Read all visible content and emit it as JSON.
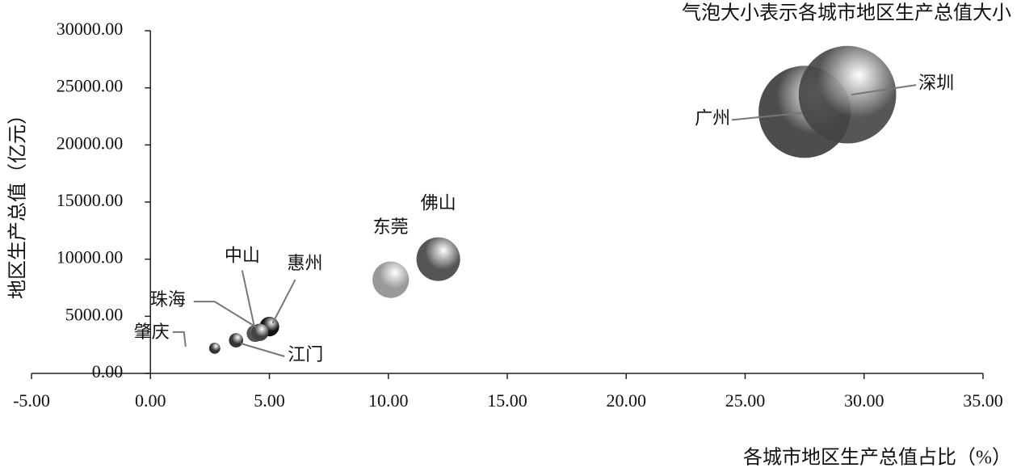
{
  "chart_data": {
    "type": "bubble",
    "annotation": "气泡大小表示各城市地区生产总值大小",
    "x_label": "各城市地区生产总值占比（%）",
    "y_label": "地区生产总值（亿元）",
    "categories": [
      "广州",
      "深圳",
      "佛山",
      "东莞",
      "惠州",
      "中山",
      "珠海",
      "江门",
      "肇庆"
    ],
    "x": [
      27.5,
      29.3,
      12.1,
      10.1,
      5.0,
      4.4,
      4.6,
      3.6,
      2.7
    ],
    "values": [
      22900,
      24400,
      10000,
      8200,
      4100,
      3500,
      3600,
      2900,
      2200
    ],
    "colors": [
      "#3a3a3a",
      "#444444",
      "#555555",
      "#9a9a9a",
      "#111111",
      "#555555",
      "#444444",
      "#333333",
      "#333333"
    ],
    "xlim": [
      -5,
      35
    ],
    "xticks": [
      {
        "value": -5,
        "label": "-5.00"
      },
      {
        "value": 0,
        "label": "0.00"
      },
      {
        "value": 5,
        "label": "5.00"
      },
      {
        "value": 10,
        "label": "10.00"
      },
      {
        "value": 15,
        "label": "15.00"
      },
      {
        "value": 20,
        "label": "20.00"
      },
      {
        "value": 25,
        "label": "25.00"
      },
      {
        "value": 30,
        "label": "30.00"
      },
      {
        "value": 35,
        "label": "35.00"
      }
    ],
    "ylim": [
      0,
      30000
    ],
    "yticks": [
      {
        "value": 0,
        "label": "0.00"
      },
      {
        "value": 5000,
        "label": "5000.00"
      },
      {
        "value": 10000,
        "label": "10000.00"
      },
      {
        "value": 15000,
        "label": "15000.00"
      },
      {
        "value": 20000,
        "label": "20000.00"
      },
      {
        "value": 25000,
        "label": "25000.00"
      },
      {
        "value": 30000,
        "label": "30000.00"
      }
    ]
  }
}
